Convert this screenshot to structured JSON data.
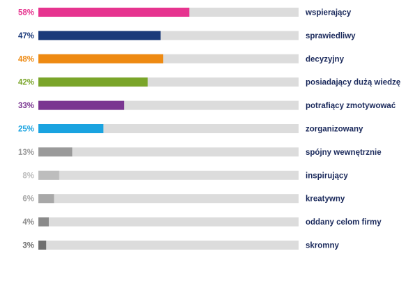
{
  "chart_data": {
    "type": "bar",
    "orientation": "horizontal",
    "ylim": [
      0,
      100
    ],
    "grid": false,
    "categories": [
      "wspierający",
      "sprawiedliwy",
      "decyzyjny",
      "posiadający dużą wiedzę",
      "potrafiący zmotywować",
      "zorganizowany",
      "spójny wewnętrznie",
      "inspirujący",
      "kreatywny",
      "oddany celom firmy",
      "skromny"
    ],
    "values": [
      58,
      47,
      48,
      42,
      33,
      25,
      13,
      8,
      6,
      4,
      3
    ],
    "value_labels": [
      "58%",
      "47%",
      "48%",
      "42%",
      "33%",
      "25%",
      "13%",
      "8%",
      "6%",
      "4%",
      "3%"
    ],
    "bar_colors": [
      "#e6348f",
      "#1b3a7a",
      "#ee8a12",
      "#7aa52a",
      "#7a3691",
      "#1aa3e0",
      "#9a9a9a",
      "#bdbdbd",
      "#a8a8a8",
      "#8a8a8a",
      "#6f6f6f"
    ],
    "label_colors": [
      "#e6348f",
      "#1b3a7a",
      "#ee8a12",
      "#7aa52a",
      "#7a3691",
      "#1aa3e0",
      "#9a9a9a",
      "#bdbdbd",
      "#a8a8a8",
      "#8a8a8a",
      "#6f6f6f"
    ],
    "track_color": "#dcdcdc",
    "category_label_color": "#1b2a5c"
  }
}
